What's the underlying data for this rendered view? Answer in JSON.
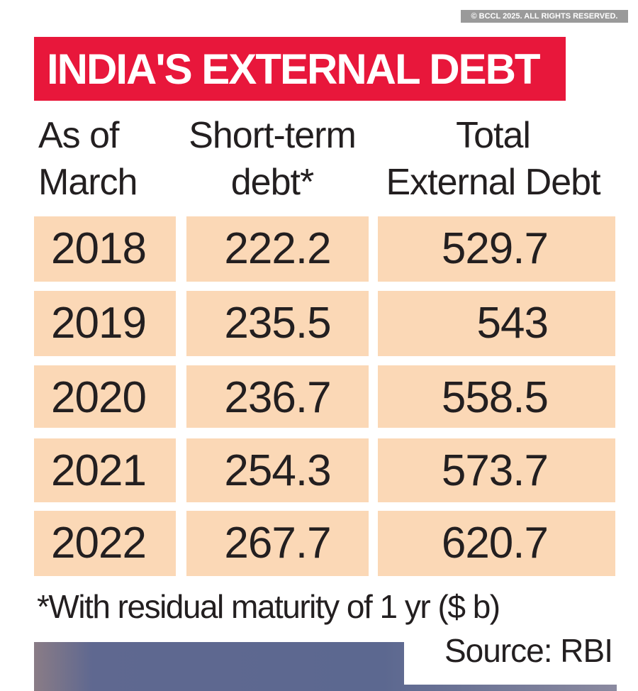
{
  "chart_data": {
    "type": "table",
    "title": "INDIA'S EXTERNAL DEBT",
    "columns": [
      [
        "As of",
        "March"
      ],
      [
        "Short-term",
        "debt*"
      ],
      [
        "Total",
        "External Debt"
      ]
    ],
    "rows": [
      [
        "2018",
        "222.2",
        "529.7"
      ],
      [
        "2019",
        "235.5",
        "543"
      ],
      [
        "2020",
        "236.7",
        "558.5"
      ],
      [
        "2021",
        "254.3",
        "573.7"
      ],
      [
        "2022",
        "267.7",
        "620.7"
      ]
    ],
    "footnote": "*With residual maturity of 1 yr ($ b)",
    "source": "Source: RBI"
  },
  "watermark": "© BCCL 2025. ALL RIGHTS RESERVED.",
  "colors": {
    "title_bg": "#e8173b",
    "cell_bg": "#fbd8b6",
    "text": "#231f20"
  }
}
